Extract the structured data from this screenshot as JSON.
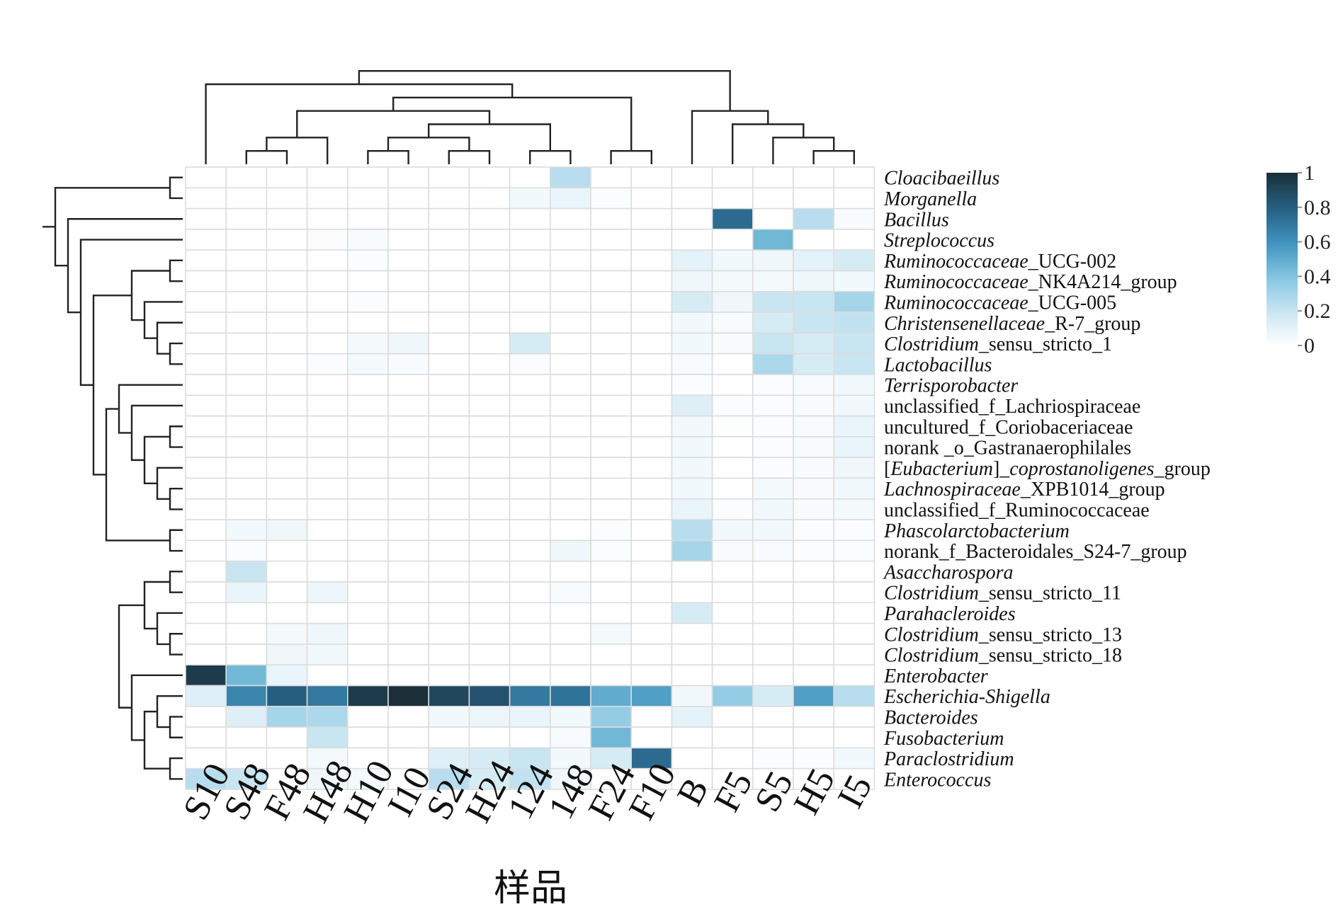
{
  "chart_data": {
    "type": "heatmap",
    "xlabel": "样品",
    "columns": [
      "S10",
      "S48",
      "F48",
      "H48",
      "H10",
      "I10",
      "S24",
      "H24",
      "124",
      "148",
      "F24",
      "F10",
      "B",
      "F5",
      "S5",
      "H5",
      "I5"
    ],
    "rows": [
      {
        "label": "Cloacibaeillus",
        "parts": [
          {
            "t": "Cloacibaeillus",
            "i": true
          }
        ]
      },
      {
        "label": "Morganella",
        "parts": [
          {
            "t": "Morganella",
            "i": true
          }
        ]
      },
      {
        "label": "Bacillus",
        "parts": [
          {
            "t": "Bacillus",
            "i": true
          }
        ]
      },
      {
        "label": "Streplococcus",
        "parts": [
          {
            "t": "Streplococcus",
            "i": true
          }
        ]
      },
      {
        "label": "Ruminococcaceae_UCG-002",
        "parts": [
          {
            "t": "Ruminococcaceae",
            "i": true
          },
          {
            "t": "_UCG-002",
            "i": false
          }
        ]
      },
      {
        "label": "Ruminococcaceae_NK4A214_group",
        "parts": [
          {
            "t": "Ruminococcaceae",
            "i": true
          },
          {
            "t": "_NK4A214_group",
            "i": false
          }
        ]
      },
      {
        "label": "Ruminococcaceae_UCG-005",
        "parts": [
          {
            "t": "Ruminococcaceae",
            "i": true
          },
          {
            "t": "_UCG-005",
            "i": false
          }
        ]
      },
      {
        "label": "Christensenellaceae_R-7_group",
        "parts": [
          {
            "t": "Christensenellaceae",
            "i": true
          },
          {
            "t": "_R-7_group",
            "i": false
          }
        ]
      },
      {
        "label": "Clostridium_sensu_stricto_1",
        "parts": [
          {
            "t": "Clostridium",
            "i": true
          },
          {
            "t": "_sensu_stricto_1",
            "i": false
          }
        ]
      },
      {
        "label": "Lactobacillus",
        "parts": [
          {
            "t": "Lactobacillus",
            "i": true
          }
        ]
      },
      {
        "label": "Terrisporobacter",
        "parts": [
          {
            "t": "Terrisporobacter",
            "i": true
          }
        ]
      },
      {
        "label": "unclassified_f_Lachriospiraceae",
        "parts": [
          {
            "t": "unclassified_f_Lachriospiraceae",
            "i": false
          }
        ]
      },
      {
        "label": "uncultured_f_Coriobaceriaceae",
        "parts": [
          {
            "t": "uncultured_f_Coriobaceriaceae",
            "i": false
          }
        ]
      },
      {
        "label": "norank _o_Gastranaerophilales",
        "parts": [
          {
            "t": "norank _o_Gastranaerophilales",
            "i": false
          }
        ]
      },
      {
        "label": "[Eubacterium]_coprostanoligenes_group",
        "parts": [
          {
            "t": "[",
            "i": false
          },
          {
            "t": "Eubacterium",
            "i": true
          },
          {
            "t": "]_",
            "i": false
          },
          {
            "t": "coprostanoligenes",
            "i": true
          },
          {
            "t": "_group",
            "i": false
          }
        ]
      },
      {
        "label": "Lachnospiraceae_XPB1014_group",
        "parts": [
          {
            "t": "Lachnospiraceae",
            "i": true
          },
          {
            "t": "_XPB1014_group",
            "i": false
          }
        ]
      },
      {
        "label": "unclassified_f_Ruminococcaceae",
        "parts": [
          {
            "t": "unclassified_f_Ruminococcaceae",
            "i": false
          }
        ]
      },
      {
        "label": "Phascolarctobacterium",
        "parts": [
          {
            "t": "Phascolarctobacterium",
            "i": true
          }
        ]
      },
      {
        "label": "norank_f_Bacteroidales_S24-7_group",
        "parts": [
          {
            "t": "norank_f_Bacteroidales_S24-7_group",
            "i": false
          }
        ]
      },
      {
        "label": "Asaccharospora",
        "parts": [
          {
            "t": "Asaccharospora",
            "i": true
          }
        ]
      },
      {
        "label": "Clostridium_sensu_stricto_11",
        "parts": [
          {
            "t": "Clostridium",
            "i": true
          },
          {
            "t": "_sensu_stricto_11",
            "i": false
          }
        ]
      },
      {
        "label": "Parahacleroides",
        "parts": [
          {
            "t": "Parahacleroides",
            "i": true
          }
        ]
      },
      {
        "label": "Clostridium_sensu_stricto_13",
        "parts": [
          {
            "t": "Clostridium",
            "i": true
          },
          {
            "t": "_sensu_stricto_13",
            "i": false
          }
        ]
      },
      {
        "label": "Clostridium_sensu_stricto_18",
        "parts": [
          {
            "t": "Clostridium",
            "i": true
          },
          {
            "t": "_sensu_stricto_18",
            "i": false
          }
        ]
      },
      {
        "label": "Enterobacter",
        "parts": [
          {
            "t": "Enterobacter",
            "i": true
          }
        ]
      },
      {
        "label": "Escherichia-Shigella",
        "parts": [
          {
            "t": "Escherichia-Shigella",
            "i": true
          }
        ]
      },
      {
        "label": "Bacteroides",
        "parts": [
          {
            "t": "Bacteroides",
            "i": true
          }
        ]
      },
      {
        "label": "Fusobacterium",
        "parts": [
          {
            "t": "Fusobacterium",
            "i": true
          }
        ]
      },
      {
        "label": "Paraclostridium",
        "parts": [
          {
            "t": "Paraclostridium",
            "i": true
          }
        ]
      },
      {
        "label": "Enterococcus",
        "parts": [
          {
            "t": "Enterococcus",
            "i": true
          }
        ]
      }
    ],
    "values": [
      [
        0,
        0,
        0,
        0,
        0,
        0,
        0,
        0,
        0,
        0.25,
        0,
        0,
        0,
        0,
        0,
        0,
        0
      ],
      [
        0,
        0,
        0,
        0,
        0,
        0,
        0,
        0,
        0.05,
        0.08,
        0.02,
        0,
        0,
        0,
        0,
        0,
        0
      ],
      [
        0,
        0,
        0,
        0,
        0,
        0,
        0,
        0,
        0,
        0,
        0,
        0,
        0,
        0.75,
        0,
        0.25,
        0.03
      ],
      [
        0,
        0,
        0,
        0.02,
        0.03,
        0,
        0,
        0,
        0,
        0,
        0,
        0,
        0,
        0,
        0.45,
        0,
        0
      ],
      [
        0,
        0,
        0,
        0,
        0.02,
        0,
        0,
        0,
        0,
        0,
        0,
        0,
        0.1,
        0.05,
        0.06,
        0.1,
        0.15
      ],
      [
        0,
        0,
        0,
        0,
        0,
        0,
        0,
        0,
        0,
        0,
        0,
        0,
        0.06,
        0.04,
        0.04,
        0.06,
        0.05
      ],
      [
        0,
        0,
        0,
        0,
        0.02,
        0,
        0,
        0,
        0,
        0,
        0,
        0,
        0.15,
        0.06,
        0.2,
        0.2,
        0.3
      ],
      [
        0,
        0,
        0,
        0,
        0,
        0,
        0,
        0,
        0,
        0,
        0,
        0,
        0.05,
        0.03,
        0.15,
        0.2,
        0.22
      ],
      [
        0,
        0,
        0,
        0,
        0.04,
        0.06,
        0,
        0,
        0.15,
        0,
        0,
        0,
        0.05,
        0.03,
        0.2,
        0.15,
        0.2
      ],
      [
        0,
        0,
        0,
        0.02,
        0.04,
        0.03,
        0,
        0,
        0.02,
        0,
        0,
        0,
        0.03,
        0,
        0.28,
        0.15,
        0.2
      ],
      [
        0,
        0,
        0,
        0,
        0,
        0,
        0,
        0,
        0,
        0,
        0,
        0,
        0.02,
        0,
        0.02,
        0.03,
        0.05
      ],
      [
        0,
        0,
        0,
        0,
        0,
        0,
        0,
        0,
        0,
        0,
        0,
        0,
        0.12,
        0.02,
        0.02,
        0.03,
        0.05
      ],
      [
        0,
        0,
        0,
        0,
        0,
        0,
        0,
        0,
        0,
        0,
        0,
        0,
        0.05,
        0.01,
        0.02,
        0.03,
        0.08
      ],
      [
        0,
        0,
        0,
        0,
        0,
        0,
        0,
        0,
        0,
        0,
        0,
        0,
        0.05,
        0,
        0.02,
        0.03,
        0.08
      ],
      [
        0,
        0,
        0,
        0,
        0,
        0,
        0,
        0,
        0,
        0,
        0,
        0,
        0.05,
        0,
        0.02,
        0.03,
        0.06
      ],
      [
        0,
        0,
        0,
        0,
        0,
        0,
        0,
        0,
        0,
        0,
        0,
        0,
        0.05,
        0,
        0.04,
        0.03,
        0.05
      ],
      [
        0,
        0,
        0,
        0,
        0,
        0,
        0,
        0,
        0,
        0,
        0,
        0,
        0.08,
        0.02,
        0.05,
        0.03,
        0.04
      ],
      [
        0,
        0.05,
        0.06,
        0,
        0,
        0,
        0,
        0,
        0,
        0,
        0.02,
        0,
        0.25,
        0.05,
        0.05,
        0.02,
        0.02
      ],
      [
        0,
        0.02,
        0,
        0,
        0,
        0,
        0,
        0,
        0,
        0.06,
        0.02,
        0,
        0.3,
        0.03,
        0.03,
        0.02,
        0.02
      ],
      [
        0,
        0.2,
        0,
        0,
        0,
        0,
        0,
        0,
        0,
        0,
        0,
        0,
        0,
        0,
        0,
        0,
        0
      ],
      [
        0,
        0.08,
        0,
        0.07,
        0,
        0,
        0,
        0,
        0,
        0.03,
        0,
        0,
        0,
        0,
        0,
        0,
        0
      ],
      [
        0,
        0,
        0,
        0,
        0,
        0,
        0,
        0,
        0,
        0,
        0,
        0,
        0.15,
        0,
        0,
        0,
        0
      ],
      [
        0,
        0,
        0.04,
        0.06,
        0,
        0,
        0,
        0,
        0,
        0,
        0.04,
        0,
        0,
        0,
        0,
        0,
        0
      ],
      [
        0,
        0,
        0.06,
        0.05,
        0,
        0,
        0,
        0,
        0,
        0,
        0,
        0,
        0,
        0,
        0,
        0,
        0
      ],
      [
        0.95,
        0.45,
        0.08,
        0,
        0,
        0,
        0,
        0,
        0,
        0,
        0,
        0,
        0,
        0,
        0,
        0,
        0
      ],
      [
        0.12,
        0.65,
        0.8,
        0.7,
        0.95,
        1.0,
        0.9,
        0.85,
        0.7,
        0.72,
        0.5,
        0.55,
        0.05,
        0.35,
        0.15,
        0.55,
        0.25
      ],
      [
        0,
        0.12,
        0.3,
        0.28,
        0,
        0,
        0.05,
        0.07,
        0.08,
        0.05,
        0.35,
        0,
        0.1,
        0,
        0,
        0,
        0
      ],
      [
        0,
        0,
        0,
        0.2,
        0,
        0,
        0,
        0,
        0,
        0.03,
        0.45,
        0,
        0,
        0,
        0,
        0,
        0
      ],
      [
        0,
        0,
        0,
        0.04,
        0,
        0,
        0.12,
        0.15,
        0.2,
        0.05,
        0.15,
        0.75,
        0,
        0,
        0.02,
        0.02,
        0.05
      ],
      [
        0.25,
        0.2,
        0,
        0.06,
        0.04,
        0,
        0.25,
        0.15,
        0.22,
        0.06,
        0,
        0,
        0,
        0,
        0,
        0,
        0
      ]
    ],
    "colorbar": {
      "range": [
        0,
        1
      ],
      "ticks": [
        "1",
        "0.8",
        "0.6",
        "0.4",
        "0.2",
        "0"
      ],
      "colors": [
        "#ffffff",
        "#c8e5f2",
        "#82c4e0",
        "#3f92bd",
        "#265e80",
        "#1a2f38"
      ]
    },
    "dendrogram_rows": true,
    "dendrogram_columns": true,
    "grid": true
  }
}
